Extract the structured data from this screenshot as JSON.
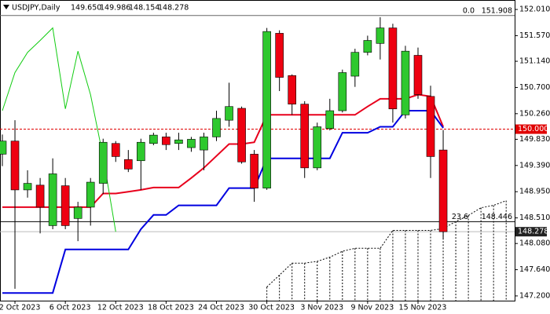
{
  "chart_data": {
    "type": "candlestick",
    "symbol": "USDJPY,Daily",
    "ohlc": [
      {
        "value": 149.65,
        "label": "149.650"
      },
      {
        "value": 149.986,
        "label": "149.986"
      },
      {
        "value": 148.154,
        "label": "148.154"
      },
      {
        "value": 148.278,
        "label": "148.278"
      }
    ],
    "categories": [
      null,
      "2 Oct 2023",
      null,
      null,
      null,
      "6 Oct 2023",
      null,
      null,
      null,
      "12 Oct 2023",
      null,
      null,
      null,
      "18 Oct 2023",
      null,
      null,
      null,
      "24 Oct 2023",
      null,
      null,
      null,
      "30 Oct 2023",
      null,
      null,
      null,
      "3 Nov 2023",
      null,
      null,
      null,
      "9 Nov 2023",
      null,
      null,
      null,
      "15 Nov 2023",
      null,
      null,
      null,
      null,
      null,
      null,
      null
    ],
    "open": [
      149.58,
      149.8,
      148.98,
      149.06,
      148.38,
      149.05,
      148.5,
      148.69,
      149.09,
      149.76,
      149.49,
      149.47,
      149.76,
      149.87,
      149.76,
      149.69,
      149.65,
      149.87,
      150.15,
      150.35,
      149.58,
      149.01,
      151.61,
      150.9,
      150.42,
      149.35,
      150.01,
      150.31,
      150.89,
      151.29,
      151.44,
      151.7,
      150.24,
      151.24,
      150.55,
      149.65,
      null,
      null,
      null,
      null,
      null
    ],
    "high": [
      149.91,
      150.15,
      149.31,
      149.18,
      149.51,
      149.18,
      148.78,
      149.18,
      149.84,
      149.8,
      149.65,
      149.84,
      149.94,
      149.94,
      149.94,
      149.87,
      149.94,
      150.31,
      150.78,
      150.38,
      149.65,
      151.7,
      151.66,
      150.92,
      150.47,
      150.11,
      150.51,
      151.0,
      151.35,
      151.57,
      151.88,
      151.77,
      151.4,
      151.37,
      150.73,
      149.986,
      null,
      null,
      null,
      null,
      null
    ],
    "low": [
      149.38,
      147.32,
      148.85,
      148.25,
      148.32,
      148.32,
      148.12,
      148.38,
      148.91,
      149.45,
      149.28,
      148.98,
      149.73,
      149.65,
      149.65,
      149.62,
      149.31,
      149.8,
      150.04,
      149.42,
      148.78,
      148.98,
      150.64,
      150.24,
      149.18,
      149.31,
      149.98,
      150.28,
      150.71,
      151.24,
      151.17,
      150.11,
      150.18,
      150.51,
      149.18,
      148.154,
      null,
      null,
      null,
      null,
      null
    ],
    "close": [
      149.8,
      148.98,
      149.09,
      148.69,
      149.25,
      148.38,
      148.69,
      149.11,
      149.78,
      149.54,
      149.33,
      149.78,
      149.9,
      149.74,
      149.82,
      149.83,
      149.87,
      150.18,
      150.38,
      149.45,
      149.01,
      151.64,
      150.87,
      150.42,
      149.35,
      150.04,
      150.31,
      150.95,
      151.29,
      151.49,
      151.7,
      150.34,
      151.31,
      150.58,
      149.54,
      148.278,
      null,
      null,
      null,
      null,
      null
    ],
    "up_color": "#2ec82e",
    "down_color": "#ee0011",
    "lines": [
      {
        "color": "#e8001c",
        "width": 2,
        "dash": false,
        "values": [
          148.69,
          148.69,
          148.69,
          148.69,
          148.69,
          148.69,
          148.69,
          148.69,
          148.92,
          148.92,
          148.95,
          148.98,
          149.02,
          149.02,
          149.02,
          149.18,
          149.35,
          149.55,
          149.75,
          149.75,
          149.78,
          150.24,
          150.24,
          150.24,
          150.24,
          150.24,
          150.24,
          150.24,
          150.24,
          150.38,
          150.51,
          150.51,
          150.51,
          150.58,
          150.55,
          150.04,
          null,
          null,
          null,
          null,
          null
        ]
      },
      {
        "color": "#0000e0",
        "width": 2,
        "dash": false,
        "values": [
          147.25,
          147.25,
          147.25,
          147.25,
          147.25,
          147.98,
          147.98,
          147.98,
          147.98,
          147.98,
          147.98,
          148.32,
          148.56,
          148.56,
          148.72,
          148.72,
          148.72,
          148.72,
          149.01,
          149.01,
          149.01,
          149.51,
          149.51,
          149.51,
          149.51,
          149.51,
          149.51,
          149.94,
          149.94,
          149.94,
          150.04,
          150.04,
          150.31,
          150.31,
          150.31,
          150.02,
          null,
          null,
          null,
          null,
          null
        ]
      },
      {
        "color": "#11cc11",
        "width": 1,
        "dash": false,
        "values": [
          150.31,
          150.95,
          151.29,
          151.49,
          151.7,
          150.34,
          151.31,
          150.58,
          149.54,
          148.278,
          null,
          null,
          null,
          null,
          null,
          null,
          null,
          null,
          null,
          null,
          null,
          null,
          null,
          null,
          null,
          null,
          null,
          null,
          null,
          null,
          null,
          null,
          null,
          null,
          null,
          null,
          null,
          null,
          null,
          null,
          null
        ]
      },
      {
        "color": "#000000",
        "width": 1,
        "dash": true,
        "hatch": true,
        "values": [
          null,
          null,
          null,
          null,
          null,
          null,
          null,
          null,
          null,
          null,
          null,
          null,
          null,
          null,
          null,
          null,
          null,
          null,
          null,
          null,
          null,
          147.35,
          147.55,
          147.75,
          147.75,
          147.78,
          147.85,
          147.95,
          148.0,
          148.0,
          148.0,
          148.3,
          148.3,
          148.3,
          148.3,
          148.33,
          148.45,
          148.55,
          148.68,
          148.72,
          148.8
        ]
      }
    ],
    "price_line": {
      "value": 150.0,
      "label": "150.000",
      "color": "#e00000"
    },
    "last_price": {
      "value": 148.278,
      "label": "148.278"
    },
    "fib": [
      {
        "level": "0.0",
        "price": {
          "value": 151.908,
          "label": "151.908"
        }
      },
      {
        "level": "23.6",
        "price": {
          "value": 148.446,
          "label": "148.446"
        }
      }
    ],
    "ylim": [
      147.107,
      152.169
    ],
    "yticks": [
      {
        "value": 152.01,
        "label": "152.010"
      },
      {
        "value": 151.57,
        "label": "151.570"
      },
      {
        "value": 151.14,
        "label": "151.140"
      },
      {
        "value": 150.7,
        "label": "150.700"
      },
      {
        "value": 150.26,
        "label": "150.260"
      },
      {
        "value": 149.83,
        "label": "149.830"
      },
      {
        "value": 149.39,
        "label": "149.390"
      },
      {
        "value": 148.95,
        "label": "148.950"
      },
      {
        "value": 148.51,
        "label": "148.510"
      },
      {
        "value": 148.08,
        "label": "148.080"
      },
      {
        "value": 147.64,
        "label": "147.640"
      },
      {
        "value": 147.2,
        "label": "147.200"
      }
    ]
  }
}
